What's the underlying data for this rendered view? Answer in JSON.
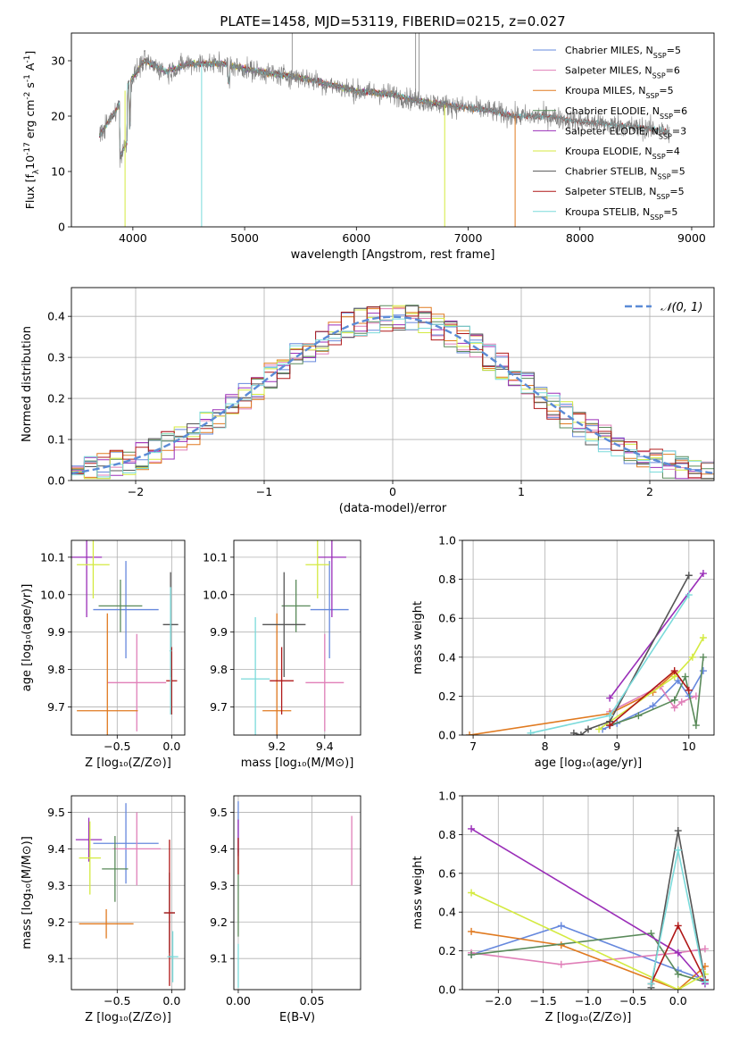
{
  "figure_title": "PLATE=1458, MJD=53119, FIBERID=0215, z=0.027",
  "colors": {
    "Chabrier MILES": "#6688dd",
    "Salpeter MILES": "#e07fb8",
    "Kroupa MILES": "#e07a20",
    "Chabrier ELODIE": "#5a8a5a",
    "Salpeter ELODIE": "#9a2eb8",
    "Kroupa ELODIE": "#d4ea40",
    "Chabrier STELIB": "#555555",
    "Salpeter STELIB": "#b01818",
    "Kroupa STELIB": "#7adada"
  },
  "chart_data": [
    {
      "id": "spectrum",
      "type": "line",
      "title": "PLATE=1458, MJD=53119, FIBERID=0215, z=0.027",
      "xlabel": "wavelength [Angstrom, rest frame]",
      "ylabel_parts": [
        "Flux [f",
        "λ",
        "10",
        "-17",
        " erg cm",
        "-2",
        " s",
        "-1",
        " A",
        "-1",
        "]"
      ],
      "xlim": [
        3450,
        9200
      ],
      "ylim": [
        0,
        35
      ],
      "xticks": [
        4000,
        5000,
        6000,
        7000,
        8000,
        9000
      ],
      "yticks": [
        0,
        10,
        20,
        30
      ],
      "grid": false,
      "legend_position": "top-right",
      "legend": [
        {
          "name": "Chabrier MILES",
          "nssp": "5"
        },
        {
          "name": "Salpeter MILES",
          "nssp": "6"
        },
        {
          "name": "Kroupa MILES",
          "nssp": "5"
        },
        {
          "name": "Chabrier ELODIE",
          "nssp": "6"
        },
        {
          "name": "Salpeter ELODIE",
          "nssp": "3"
        },
        {
          "name": "Kroupa ELODIE",
          "nssp": "4"
        },
        {
          "name": "Chabrier STELIB",
          "nssp": "5"
        },
        {
          "name": "Salpeter STELIB",
          "nssp": "5"
        },
        {
          "name": "Kroupa STELIB",
          "nssp": "5"
        }
      ],
      "continuum_x": [
        3700,
        3850,
        3950,
        4100,
        4300,
        4500,
        4800,
        5000,
        5300,
        5500,
        5800,
        6000,
        6300,
        6500,
        6800,
        7000,
        7200,
        7400,
        7700,
        8000,
        8300,
        8500,
        8700,
        9000
      ],
      "continuum_y": [
        16.5,
        21,
        25.5,
        30,
        28,
        29.5,
        29.5,
        28.5,
        27.5,
        27,
        25.5,
        24.5,
        24,
        23,
        22,
        21.5,
        21,
        20,
        20,
        19,
        18.5,
        18,
        17.5,
        16.5
      ],
      "drops": [
        {
          "x": 3930,
          "y": 0,
          "series": "Kroupa ELODIE"
        },
        {
          "x": 4615,
          "y": 0,
          "series": "Kroupa STELIB"
        },
        {
          "x": 6790,
          "y": 0,
          "series": "Kroupa ELODIE"
        },
        {
          "x": 7420,
          "y": 0,
          "series": "Kroupa MILES"
        }
      ],
      "spikes": [
        {
          "x": 5425,
          "y": 35
        },
        {
          "x": 6530,
          "y": 35
        },
        {
          "x": 6560,
          "y": 35
        }
      ]
    },
    {
      "id": "residuals",
      "type": "histogram",
      "xlabel": "(data-model)/error",
      "ylabel": "Normed distribution",
      "xlim": [
        -2.5,
        2.5
      ],
      "ylim": [
        0,
        0.47
      ],
      "xticks": [
        -2,
        -1,
        0,
        1,
        2
      ],
      "xtick_labels": [
        "−2",
        "−1",
        "0",
        "1",
        "2"
      ],
      "yticks": [
        0,
        0.1,
        0.2,
        0.3,
        0.4
      ],
      "ytick_labels": [
        "0.0",
        "0.1",
        "0.2",
        "0.3",
        "0.4"
      ],
      "grid": true,
      "legend_position": "top-right",
      "reference_curve": {
        "name": "𝒩(0, 1)",
        "mean": 0,
        "sigma": 1,
        "color": "#5b8bd6"
      },
      "bin_width": 0.1,
      "series_order": [
        "Chabrier MILES",
        "Salpeter MILES",
        "Kroupa MILES",
        "Chabrier ELODIE",
        "Salpeter ELODIE",
        "Kroupa ELODIE",
        "Chabrier STELIB",
        "Salpeter STELIB",
        "Kroupa STELIB"
      ]
    },
    {
      "id": "age_vs_Z",
      "type": "errorbar",
      "xlabel": "Z [log₁₀(Z/Z⊙)]",
      "ylabel": "age  [log₁₀(age/yr)]",
      "xlim": [
        -0.92,
        0.12
      ],
      "ylim": [
        9.625,
        10.145
      ],
      "xticks": [
        -0.5,
        0.0
      ],
      "xtick_labels": [
        "−0.5",
        "0.0"
      ],
      "yticks": [
        9.7,
        9.8,
        9.9,
        10.0,
        10.1
      ],
      "ytick_labels": [
        "9.7",
        "9.8",
        "9.9",
        "10.0",
        "10.1"
      ],
      "grid": true,
      "points": [
        {
          "series": "Chabrier MILES",
          "x": -0.42,
          "y": 9.96,
          "xerr": 0.3,
          "yerr": 0.13
        },
        {
          "series": "Salpeter MILES",
          "x": -0.32,
          "y": 9.765,
          "xerr": 0.27,
          "yerr": 0.13
        },
        {
          "series": "Kroupa MILES",
          "x": -0.59,
          "y": 9.69,
          "xerr": 0.28,
          "yerr": 0.26
        },
        {
          "series": "Chabrier ELODIE",
          "x": -0.47,
          "y": 9.97,
          "xerr": 0.2,
          "yerr": 0.07
        },
        {
          "series": "Salpeter ELODIE",
          "x": -0.78,
          "y": 10.1,
          "xerr": 0.14,
          "yerr": 0.16
        },
        {
          "series": "Kroupa ELODIE",
          "x": -0.72,
          "y": 10.08,
          "xerr": 0.15,
          "yerr": 0.09
        },
        {
          "series": "Chabrier STELIB",
          "x": -0.01,
          "y": 9.92,
          "xerr": 0.07,
          "yerr": 0.14
        },
        {
          "series": "Salpeter STELIB",
          "x": 0.0,
          "y": 9.77,
          "xerr": 0.05,
          "yerr": 0.09
        },
        {
          "series": "Kroupa STELIB",
          "x": -0.01,
          "y": 9.85,
          "xerr": 0.01,
          "yerr": 0.17
        }
      ]
    },
    {
      "id": "age_vs_mass",
      "type": "errorbar",
      "xlabel": "mass [log₁₀(M/M⊙)]",
      "ylabel": "",
      "xlim": [
        9.02,
        9.55
      ],
      "ylim": [
        9.625,
        10.145
      ],
      "xticks": [
        9.2,
        9.4
      ],
      "xtick_labels": [
        "9.2",
        "9.4"
      ],
      "yticks": [
        9.7,
        9.8,
        9.9,
        10.0,
        10.1
      ],
      "ytick_labels": [
        "9.7",
        "9.8",
        "9.9",
        "10.0",
        "10.1"
      ],
      "grid": true,
      "points": [
        {
          "series": "Chabrier MILES",
          "x": 9.42,
          "y": 9.96,
          "xerr": 0.08,
          "yerr": 0.13
        },
        {
          "series": "Salpeter MILES",
          "x": 9.4,
          "y": 9.765,
          "xerr": 0.08,
          "yerr": 0.13
        },
        {
          "series": "Kroupa MILES",
          "x": 9.2,
          "y": 9.69,
          "xerr": 0.06,
          "yerr": 0.26
        },
        {
          "series": "Chabrier ELODIE",
          "x": 9.28,
          "y": 9.97,
          "xerr": 0.06,
          "yerr": 0.07
        },
        {
          "series": "Salpeter ELODIE",
          "x": 9.43,
          "y": 10.1,
          "xerr": 0.06,
          "yerr": 0.16
        },
        {
          "series": "Kroupa ELODIE",
          "x": 9.37,
          "y": 10.08,
          "xerr": 0.05,
          "yerr": 0.09
        },
        {
          "series": "Chabrier STELIB",
          "x": 9.23,
          "y": 9.92,
          "xerr": 0.09,
          "yerr": 0.14
        },
        {
          "series": "Salpeter STELIB",
          "x": 9.22,
          "y": 9.77,
          "xerr": 0.05,
          "yerr": 0.09
        },
        {
          "series": "Kroupa STELIB",
          "x": 9.11,
          "y": 9.775,
          "xerr": 0.06,
          "yerr": 0.165
        }
      ]
    },
    {
      "id": "massweight_vs_age",
      "type": "line",
      "xlabel": "age  [log₁₀(age/yr)]",
      "ylabel": "mass weight",
      "xlim": [
        6.85,
        10.35
      ],
      "ylim": [
        0,
        1.0
      ],
      "xticks": [
        7,
        8,
        9,
        10
      ],
      "yticks": [
        0,
        0.2,
        0.4,
        0.6,
        0.8,
        1.0
      ],
      "ytick_labels": [
        "0.0",
        "0.2",
        "0.4",
        "0.6",
        "0.8",
        "1.0"
      ],
      "grid": true,
      "series": [
        {
          "name": "Chabrier MILES",
          "x": [
            8.8,
            9.0,
            9.5,
            9.85,
            10.0,
            10.2
          ],
          "y": [
            0.03,
            0.06,
            0.15,
            0.28,
            0.2,
            0.33
          ]
        },
        {
          "name": "Salpeter MILES",
          "x": [
            8.9,
            9.6,
            9.8,
            9.9,
            10.1
          ],
          "y": [
            0.12,
            0.25,
            0.14,
            0.17,
            0.2
          ]
        },
        {
          "name": "Kroupa MILES",
          "x": [
            6.95,
            8.9,
            9.5,
            9.8
          ],
          "y": [
            0.0,
            0.11,
            0.22,
            0.32
          ]
        },
        {
          "name": "Chabrier ELODIE",
          "x": [
            8.9,
            9.3,
            9.8,
            9.95,
            10.1,
            10.2
          ],
          "y": [
            0.05,
            0.1,
            0.18,
            0.3,
            0.05,
            0.4
          ]
        },
        {
          "name": "Salpeter ELODIE",
          "x": [
            8.9,
            10.2
          ],
          "y": [
            0.19,
            0.83
          ]
        },
        {
          "name": "Kroupa ELODIE",
          "x": [
            8.75,
            9.8,
            10.05,
            10.2
          ],
          "y": [
            0.03,
            0.3,
            0.4,
            0.5
          ]
        },
        {
          "name": "Chabrier STELIB",
          "x": [
            8.4,
            8.5,
            8.6,
            8.9,
            10.0
          ],
          "y": [
            0.01,
            0.0,
            0.03,
            0.07,
            0.82
          ]
        },
        {
          "name": "Salpeter STELIB",
          "x": [
            8.9,
            9.8,
            10.0
          ],
          "y": [
            0.05,
            0.33,
            0.23
          ]
        },
        {
          "name": "Kroupa STELIB",
          "x": [
            7.8,
            8.9,
            10.0
          ],
          "y": [
            0.01,
            0.1,
            0.72
          ]
        }
      ]
    },
    {
      "id": "mass_vs_Z",
      "type": "errorbar",
      "xlabel": "Z [log₁₀(Z/Z⊙)]",
      "ylabel": "mass [log₁₀(M/M⊙)]",
      "xlim": [
        -0.92,
        0.12
      ],
      "ylim": [
        9.015,
        9.545
      ],
      "xticks": [
        -0.5,
        0.0
      ],
      "xtick_labels": [
        "−0.5",
        "0.0"
      ],
      "yticks": [
        9.1,
        9.2,
        9.3,
        9.4,
        9.5
      ],
      "ytick_labels": [
        "9.1",
        "9.2",
        "9.3",
        "9.4",
        "9.5"
      ],
      "grid": true,
      "points": [
        {
          "series": "Chabrier MILES",
          "x": -0.42,
          "y": 9.415,
          "xerr": 0.3,
          "yerr": 0.11
        },
        {
          "series": "Salpeter MILES",
          "x": -0.32,
          "y": 9.4,
          "xerr": 0.22,
          "yerr": 0.1
        },
        {
          "series": "Kroupa MILES",
          "x": -0.6,
          "y": 9.195,
          "xerr": 0.25,
          "yerr": 0.04
        },
        {
          "series": "Chabrier ELODIE",
          "x": -0.52,
          "y": 9.345,
          "xerr": 0.12,
          "yerr": 0.09
        },
        {
          "series": "Salpeter ELODIE",
          "x": -0.76,
          "y": 9.425,
          "xerr": 0.12,
          "yerr": 0.06
        },
        {
          "series": "Kroupa ELODIE",
          "x": -0.75,
          "y": 9.375,
          "xerr": 0.1,
          "yerr": 0.1
        },
        {
          "series": "Chabrier STELIB",
          "x": -0.02,
          "y": 9.225,
          "xerr": 0.05,
          "yerr": 0.11
        },
        {
          "series": "Salpeter STELIB",
          "x": -0.02,
          "y": 9.225,
          "xerr": 0.05,
          "yerr": 0.2
        },
        {
          "series": "Kroupa STELIB",
          "x": 0.01,
          "y": 9.105,
          "xerr": 0.05,
          "yerr": 0.07
        }
      ]
    },
    {
      "id": "mass_vs_ebv",
      "type": "errorbar",
      "xlabel": "E(B-V)",
      "ylabel": "",
      "xlim": [
        -0.003,
        0.083
      ],
      "ylim": [
        9.015,
        9.545
      ],
      "xticks": [
        0.0,
        0.05
      ],
      "xtick_labels": [
        "0.00",
        "0.05"
      ],
      "yticks": [
        9.1,
        9.2,
        9.3,
        9.4,
        9.5
      ],
      "ytick_labels": [
        "9.1",
        "9.2",
        "9.3",
        "9.4",
        "9.5"
      ],
      "grid": true,
      "points": [
        {
          "series": "Chabrier MILES",
          "x": 0.0,
          "y": 9.46,
          "xerr": 0,
          "yerr": 0.07
        },
        {
          "series": "Salpeter MILES",
          "x": 0.077,
          "y": 9.395,
          "xerr": 0,
          "yerr": 0.095
        },
        {
          "series": "Salpeter ELODIE",
          "x": 0.0,
          "y": 9.43,
          "xerr": 0,
          "yerr": 0.05
        },
        {
          "series": "Chabrier ELODIE",
          "x": 0.0,
          "y": 9.28,
          "xerr": 0,
          "yerr": 0.12
        },
        {
          "series": "Salpeter STELIB",
          "x": 0.0,
          "y": 9.38,
          "xerr": 0,
          "yerr": 0.05
        },
        {
          "series": "Kroupa STELIB",
          "x": 0.0,
          "y": 9.08,
          "xerr": 0,
          "yerr": 0.06
        }
      ]
    },
    {
      "id": "massweight_vs_Z",
      "type": "line",
      "xlabel": "Z [log₁₀(Z/Z⊙)]",
      "ylabel": "mass weight",
      "xlim": [
        -2.4,
        0.4
      ],
      "ylim": [
        0,
        1.0
      ],
      "xticks": [
        -2.0,
        -1.5,
        -1.0,
        -0.5,
        0.0
      ],
      "xtick_labels": [
        "−2.0",
        "−1.5",
        "−1.0",
        "−0.5",
        "0.0"
      ],
      "yticks": [
        0,
        0.2,
        0.4,
        0.6,
        0.8,
        1.0
      ],
      "ytick_labels": [
        "0.0",
        "0.2",
        "0.4",
        "0.6",
        "0.8",
        "1.0"
      ],
      "grid": true,
      "series": [
        {
          "name": "Chabrier MILES",
          "x": [
            -2.3,
            -1.3,
            0.0,
            0.3
          ],
          "y": [
            0.18,
            0.33,
            0.1,
            0.05
          ]
        },
        {
          "name": "Salpeter MILES",
          "x": [
            -2.3,
            -1.3,
            0.0,
            0.3
          ],
          "y": [
            0.19,
            0.13,
            0.19,
            0.21
          ]
        },
        {
          "name": "Kroupa MILES",
          "x": [
            -2.3,
            -1.3,
            0.0,
            0.3
          ],
          "y": [
            0.3,
            0.23,
            0.0,
            0.12
          ]
        },
        {
          "name": "Chabrier ELODIE",
          "x": [
            -2.3,
            -0.3,
            0.0,
            0.3
          ],
          "y": [
            0.18,
            0.29,
            0.08,
            0.04
          ]
        },
        {
          "name": "Salpeter ELODIE",
          "x": [
            -2.3,
            0.0,
            0.3
          ],
          "y": [
            0.83,
            0.19,
            0.03
          ]
        },
        {
          "name": "Kroupa ELODIE",
          "x": [
            -2.3,
            0.0,
            0.3
          ],
          "y": [
            0.5,
            0.0,
            0.08
          ]
        },
        {
          "name": "Chabrier STELIB",
          "x": [
            -0.3,
            0.0,
            0.3
          ],
          "y": [
            0.01,
            0.82,
            0.05
          ]
        },
        {
          "name": "Salpeter STELIB",
          "x": [
            -0.3,
            0.0,
            0.3
          ],
          "y": [
            0.03,
            0.33,
            0.05
          ]
        },
        {
          "name": "Kroupa STELIB",
          "x": [
            -0.3,
            0.0,
            0.3
          ],
          "y": [
            0.03,
            0.72,
            0.04
          ]
        }
      ]
    }
  ]
}
